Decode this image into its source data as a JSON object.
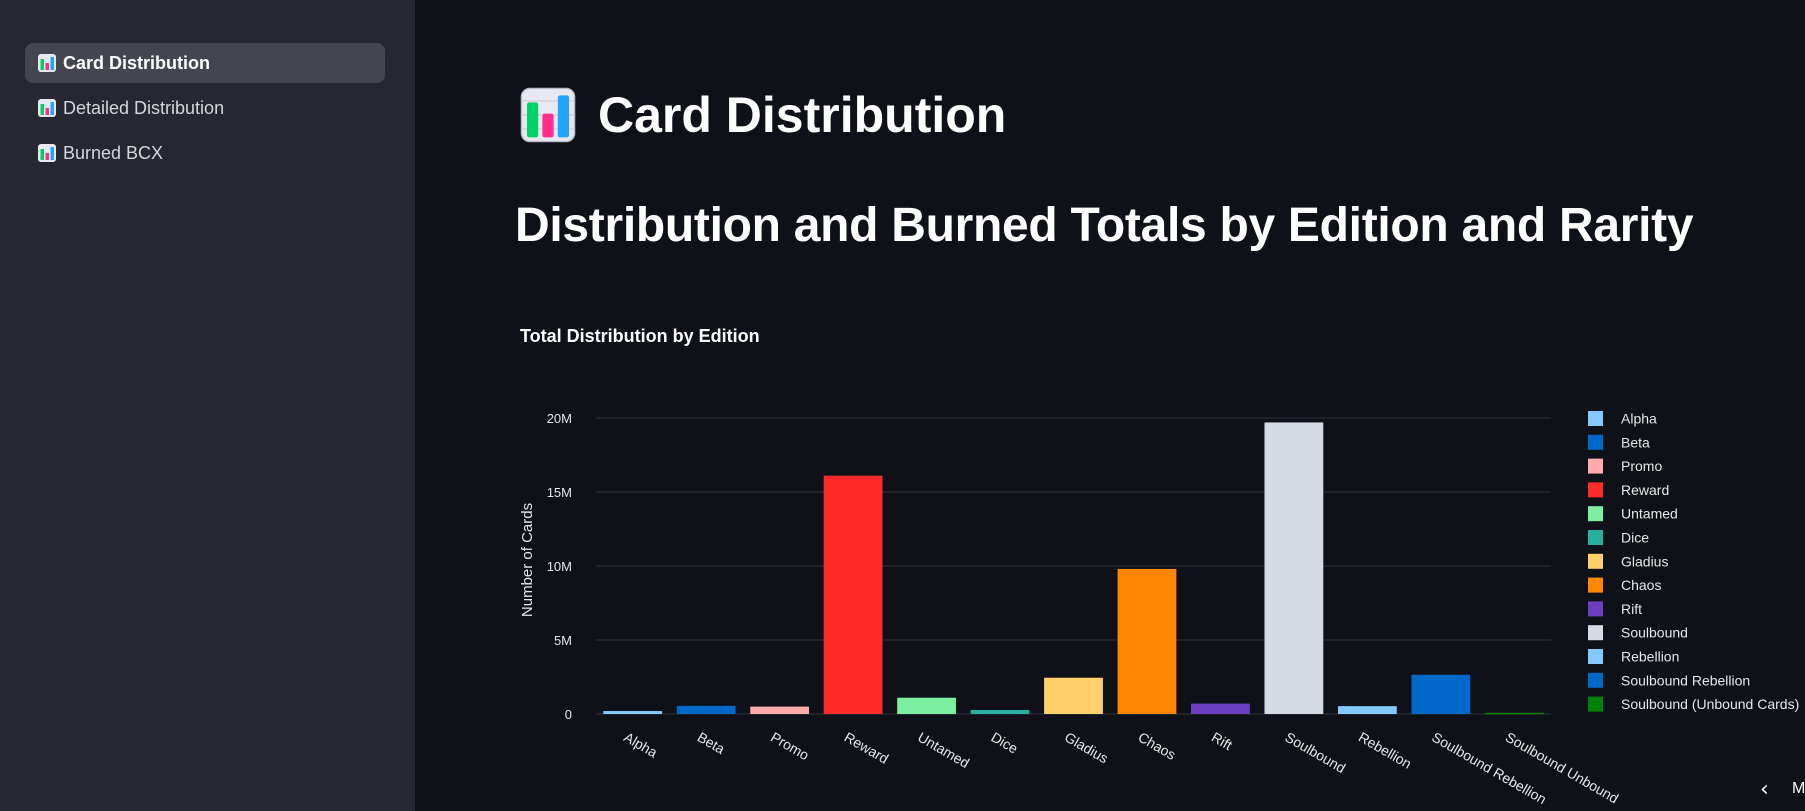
{
  "sidebar": {
    "items": [
      {
        "label": "Card Distribution",
        "icon": "bar-chart-icon",
        "active": true
      },
      {
        "label": "Detailed Distribution",
        "icon": "bar-chart-icon",
        "active": false
      },
      {
        "label": "Burned BCX",
        "icon": "bar-chart-icon",
        "active": false
      }
    ]
  },
  "main": {
    "page_title": "Card Distribution",
    "page_icon": "bar-chart-icon",
    "heading": "Distribution and Burned Totals by Edition and Rarity",
    "chart_title": "Total Distribution by Edition",
    "partial_text": "M"
  },
  "colors": {
    "background": "#0e1117",
    "sidebar": "#262730",
    "active_item": "#44464f"
  },
  "chart_data": {
    "type": "bar",
    "title": "Total Distribution by Edition",
    "xlabel": "",
    "ylabel": "Number of Cards",
    "ylim": [
      0,
      20000000
    ],
    "yticks": [
      {
        "value": 0,
        "label": "0"
      },
      {
        "value": 5000000,
        "label": "5M"
      },
      {
        "value": 10000000,
        "label": "10M"
      },
      {
        "value": 15000000,
        "label": "15M"
      },
      {
        "value": 20000000,
        "label": "20M"
      }
    ],
    "grid": true,
    "legend": "right",
    "categories": [
      "Alpha",
      "Beta",
      "Promo",
      "Reward",
      "Untamed",
      "Dice",
      "Gladius",
      "Chaos",
      "Rift",
      "Soulbound",
      "Rebellion",
      "Soulbound Rebellion",
      "Soulbound Unbound"
    ],
    "values": [
      200000,
      550000,
      500000,
      16100000,
      1100000,
      270000,
      2450000,
      9800000,
      700000,
      19700000,
      530000,
      2650000,
      80000
    ],
    "colors": [
      "#83c9ff",
      "#0068c9",
      "#ffabab",
      "#ff2b2b",
      "#7defa1",
      "#29b09d",
      "#ffd16a",
      "#ff8700",
      "#6d3fc0",
      "#d5dae5",
      "#83c9ff",
      "#0068c9",
      "#00810a"
    ],
    "legend_entries": [
      {
        "name": "Alpha",
        "color": "#83c9ff"
      },
      {
        "name": "Beta",
        "color": "#0068c9"
      },
      {
        "name": "Promo",
        "color": "#ffabab"
      },
      {
        "name": "Reward",
        "color": "#ff2b2b"
      },
      {
        "name": "Untamed",
        "color": "#7defa1"
      },
      {
        "name": "Dice",
        "color": "#29b09d"
      },
      {
        "name": "Gladius",
        "color": "#ffd16a"
      },
      {
        "name": "Chaos",
        "color": "#ff8700"
      },
      {
        "name": "Rift",
        "color": "#6d3fc0"
      },
      {
        "name": "Soulbound",
        "color": "#d5dae5"
      },
      {
        "name": "Rebellion",
        "color": "#83c9ff"
      },
      {
        "name": "Soulbound Rebellion",
        "color": "#0068c9"
      },
      {
        "name": "Soulbound (Unbound Cards)",
        "color": "#00810a"
      }
    ]
  }
}
